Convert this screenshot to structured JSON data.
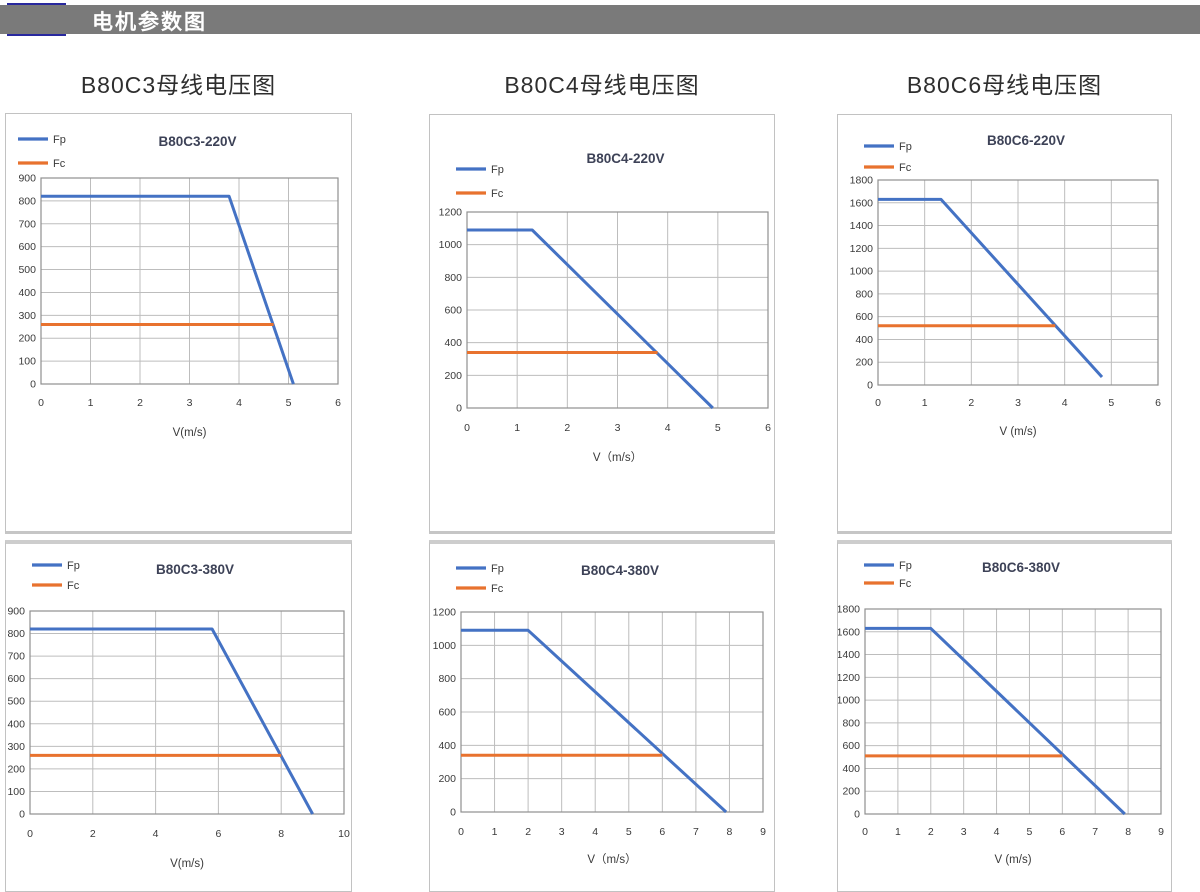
{
  "header": {
    "title": "电机参数图"
  },
  "colors": {
    "accent_blue": "#28289e",
    "header_gray": "#7a7a7a",
    "fp_blue": "#4472c4",
    "fc_orange": "#e8722e",
    "grid_gray": "#bdbdbd",
    "plot_border": "#8f8f8f",
    "tick_text": "#3a3a3a",
    "chart_title_text": "#3d4257"
  },
  "column_titles": [
    "B80C3母线电压图",
    "B80C4母线电压图",
    "B80C6母线电压图"
  ],
  "chart_data": [
    {
      "type": "line",
      "title": "B80C3-220V",
      "xlabel": "V(m/s)",
      "xlim": [
        0,
        6
      ],
      "x_step": 1,
      "ylim": [
        0,
        900
      ],
      "y_step": 100,
      "grid": true,
      "legend_position": "top-left",
      "legend": [
        "Fp",
        "Fc"
      ],
      "series": [
        {
          "name": "Fp",
          "color": "#4472c4",
          "points": [
            [
              0,
              820
            ],
            [
              3.8,
              820
            ],
            [
              5.1,
              0
            ]
          ]
        },
        {
          "name": "Fc",
          "color": "#e8722e",
          "points": [
            [
              0,
              260
            ],
            [
              4.7,
              260
            ]
          ]
        }
      ]
    },
    {
      "type": "line",
      "title": "B80C4-220V",
      "xlabel": "V（m/s）",
      "xlim": [
        0,
        6
      ],
      "x_step": 1,
      "ylim": [
        0,
        1200
      ],
      "y_step": 200,
      "grid": true,
      "legend_position": "top-left",
      "legend": [
        "Fp",
        "Fc"
      ],
      "series": [
        {
          "name": "Fp",
          "color": "#4472c4",
          "points": [
            [
              0,
              1090
            ],
            [
              1.3,
              1090
            ],
            [
              4.9,
              0
            ]
          ]
        },
        {
          "name": "Fc",
          "color": "#e8722e",
          "points": [
            [
              0,
              340
            ],
            [
              3.8,
              340
            ]
          ]
        }
      ]
    },
    {
      "type": "line",
      "title": "B80C6-220V",
      "xlabel": "V (m/s)",
      "xlim": [
        0,
        6
      ],
      "x_step": 1,
      "ylim": [
        0,
        1800
      ],
      "y_step": 200,
      "grid": true,
      "legend_position": "top-left",
      "legend": [
        "Fp",
        "Fc"
      ],
      "series": [
        {
          "name": "Fp",
          "color": "#4472c4",
          "points": [
            [
              0,
              1630
            ],
            [
              1.35,
              1630
            ],
            [
              4.8,
              70
            ]
          ]
        },
        {
          "name": "Fc",
          "color": "#e8722e",
          "points": [
            [
              0,
              520
            ],
            [
              3.8,
              520
            ]
          ]
        }
      ]
    },
    {
      "type": "line",
      "title": "B80C3-380V",
      "xlabel": "V(m/s)",
      "xlim": [
        0,
        10
      ],
      "x_step": 2,
      "ylim": [
        0,
        900
      ],
      "y_step": 100,
      "grid": true,
      "legend_position": "top-left",
      "legend": [
        "Fp",
        "Fc"
      ],
      "series": [
        {
          "name": "Fp",
          "color": "#4472c4",
          "points": [
            [
              0,
              820
            ],
            [
              5.8,
              820
            ],
            [
              9,
              0
            ]
          ]
        },
        {
          "name": "Fc",
          "color": "#e8722e",
          "points": [
            [
              0,
              260
            ],
            [
              8,
              260
            ]
          ]
        }
      ]
    },
    {
      "type": "line",
      "title": "B80C4-380V",
      "xlabel": "V（m/s）",
      "xlim": [
        0,
        9
      ],
      "x_step": 1,
      "ylim": [
        0,
        1200
      ],
      "y_step": 200,
      "grid": true,
      "legend_position": "top-left",
      "legend": [
        "Fp",
        "Fc"
      ],
      "series": [
        {
          "name": "Fp",
          "color": "#4472c4",
          "points": [
            [
              0,
              1090
            ],
            [
              2,
              1090
            ],
            [
              7.9,
              0
            ]
          ]
        },
        {
          "name": "Fc",
          "color": "#e8722e",
          "points": [
            [
              0,
              340
            ],
            [
              6,
              340
            ]
          ]
        }
      ]
    },
    {
      "type": "line",
      "title": "B80C6-380V",
      "xlabel": "V (m/s)",
      "xlim": [
        0,
        9
      ],
      "x_step": 1,
      "ylim": [
        0,
        1800
      ],
      "y_step": 200,
      "grid": true,
      "legend_position": "top-left",
      "legend": [
        "Fp",
        "Fc"
      ],
      "series": [
        {
          "name": "Fp",
          "color": "#4472c4",
          "points": [
            [
              0,
              1630
            ],
            [
              2,
              1630
            ],
            [
              7.9,
              0
            ]
          ]
        },
        {
          "name": "Fc",
          "color": "#e8722e",
          "points": [
            [
              0,
              510
            ],
            [
              6,
              510
            ]
          ]
        }
      ]
    }
  ]
}
